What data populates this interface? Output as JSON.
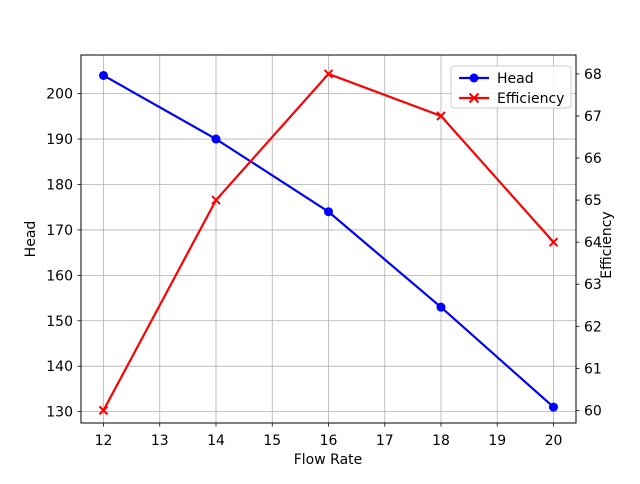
{
  "chart_data": {
    "type": "line",
    "title": "",
    "xlabel": "Flow Rate",
    "ylabel": "Head",
    "ylabel_right": "Efficiency",
    "x": [
      12,
      14,
      16,
      18,
      20
    ],
    "series": [
      {
        "name": "Head",
        "yaxis": "left",
        "color": "#0000ff",
        "marker": "circle",
        "values": [
          204,
          190,
          174,
          153,
          131
        ]
      },
      {
        "name": "Efficiency",
        "yaxis": "right",
        "color": "#ff0000",
        "marker": "x",
        "values": [
          60,
          65,
          68,
          67,
          64
        ]
      }
    ],
    "axes": {
      "x": {
        "ticks": [
          12,
          13,
          14,
          15,
          16,
          17,
          18,
          19,
          20
        ],
        "lim": [
          11.6,
          20.4
        ]
      },
      "y_left": {
        "color": "#0000ff",
        "ticks": [
          130,
          140,
          150,
          160,
          170,
          180,
          190,
          200
        ],
        "lim": [
          127.5,
          208.5
        ]
      },
      "y_right": {
        "color": "#ff0000",
        "ticks": [
          60,
          61,
          62,
          63,
          64,
          65,
          66,
          67,
          68
        ],
        "lim": [
          59.7,
          68.45
        ]
      }
    },
    "grid": true,
    "legend": {
      "position": "upper right",
      "entries": [
        "Head",
        "Efficiency"
      ]
    }
  },
  "style": {
    "grid_color": "#b0b0b0",
    "spine_color": "#000000",
    "tick_color": "#000000",
    "legend_border_color": "#cccccc",
    "legend_fill": "rgba(255,255,255,0.85)"
  }
}
